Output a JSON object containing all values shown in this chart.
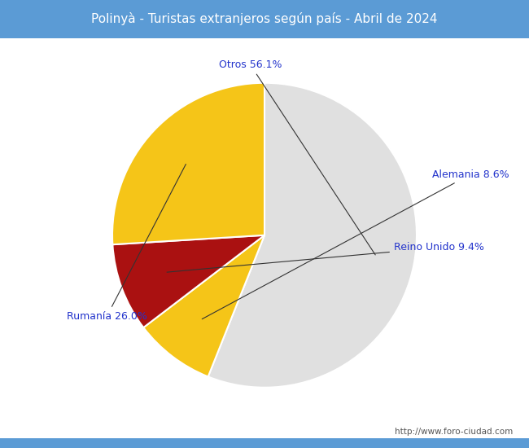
{
  "title": "Polinyà - Turistas extranjeros según país - Abril de 2024",
  "title_bg_color": "#5b9bd5",
  "title_text_color": "#ffffff",
  "footer_text": "http://www.foro-ciudad.com",
  "footer_color": "#555555",
  "labels": [
    "Otros",
    "Alemania",
    "Reino Unido",
    "Rumanía"
  ],
  "values": [
    56.1,
    8.6,
    9.4,
    26.0
  ],
  "slice_colors": [
    "#e0e0e0",
    "#f5c518",
    "#aa1111",
    "#f5c518"
  ],
  "label_color": "#2233cc",
  "background_color": "#ffffff",
  "border_color": "#5b9bd5",
  "label_fontsize": 9,
  "title_fontsize": 11,
  "footer_fontsize": 7.5
}
